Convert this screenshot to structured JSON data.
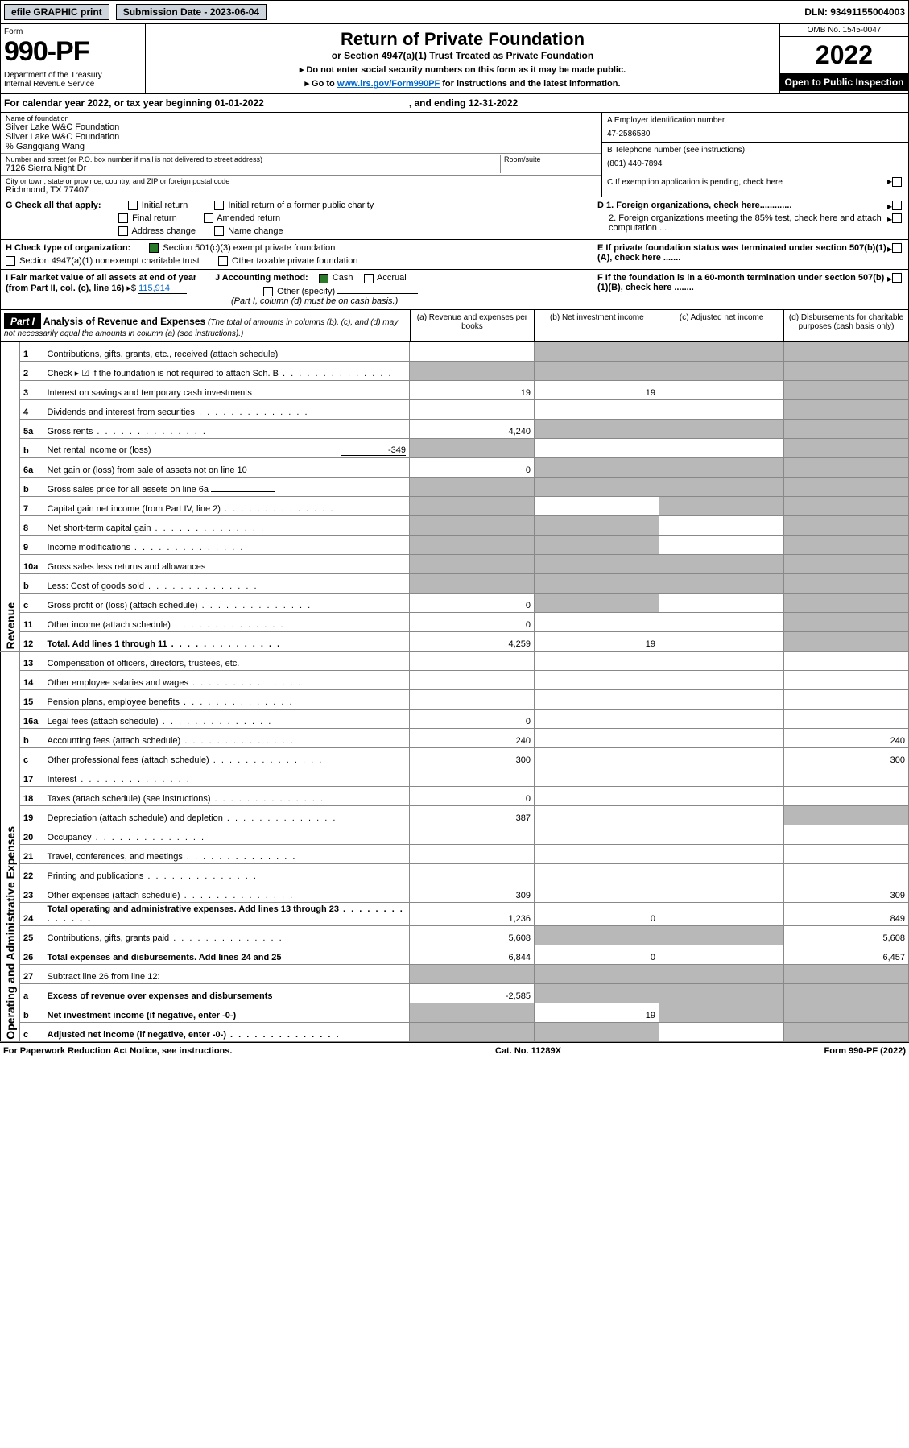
{
  "top": {
    "efile": "efile GRAPHIC print",
    "submission_label": "Submission Date - 2023-06-04",
    "dln": "DLN: 93491155004003"
  },
  "header": {
    "form_label": "Form",
    "form_num": "990-PF",
    "dept": "Department of the Treasury\nInternal Revenue Service",
    "title": "Return of Private Foundation",
    "subtitle": "or Section 4947(a)(1) Trust Treated as Private Foundation",
    "instr1": "▸ Do not enter social security numbers on this form as it may be made public.",
    "instr2_pre": "▸ Go to ",
    "instr2_link": "www.irs.gov/Form990PF",
    "instr2_post": " for instructions and the latest information.",
    "omb": "OMB No. 1545-0047",
    "year": "2022",
    "open_pub": "Open to Public Inspection"
  },
  "period": {
    "text": "For calendar year 2022, or tax year beginning 01-01-2022",
    "ending": ", and ending 12-31-2022"
  },
  "entity": {
    "name_label": "Name of foundation",
    "name1": "Silver Lake W&C Foundation",
    "name2": "Silver Lake W&C Foundation",
    "care_of": "% Gangqiang Wang",
    "addr_label": "Number and street (or P.O. box number if mail is not delivered to street address)",
    "addr": "7126 Sierra Night Dr",
    "room_label": "Room/suite",
    "city_label": "City or town, state or province, country, and ZIP or foreign postal code",
    "city": "Richmond, TX  77407",
    "a_label": "A Employer identification number",
    "a_val": "47-2586580",
    "b_label": "B Telephone number (see instructions)",
    "b_val": "(801) 440-7894",
    "c_label": "C If exemption application is pending, check here",
    "d1_label": "D 1. Foreign organizations, check here.............",
    "d2_label": "2. Foreign organizations meeting the 85% test, check here and attach computation ...",
    "e_label": "E If private foundation status was terminated under section 507(b)(1)(A), check here .......",
    "f_label": "F If the foundation is in a 60-month termination under section 507(b)(1)(B), check here ........"
  },
  "g": {
    "label": "G Check all that apply:",
    "initial": "Initial return",
    "initial_former": "Initial return of a former public charity",
    "final": "Final return",
    "amended": "Amended return",
    "addr_change": "Address change",
    "name_change": "Name change"
  },
  "h": {
    "label": "H Check type of organization:",
    "opt1": "Section 501(c)(3) exempt private foundation",
    "opt2": "Section 4947(a)(1) nonexempt charitable trust",
    "opt3": "Other taxable private foundation"
  },
  "i": {
    "label": "I Fair market value of all assets at end of year (from Part II, col. (c), line 16)",
    "arrow": "▸$",
    "val": "115,914"
  },
  "j": {
    "label": "J Accounting method:",
    "cash": "Cash",
    "accrual": "Accrual",
    "other": "Other (specify)",
    "note": "(Part I, column (d) must be on cash basis.)"
  },
  "part1": {
    "header": "Part I",
    "title": "Analysis of Revenue and Expenses",
    "title_note": "(The total of amounts in columns (b), (c), and (d) may not necessarily equal the amounts in column (a) (see instructions).)",
    "col_a": "(a) Revenue and expenses per books",
    "col_b": "(b) Net investment income",
    "col_c": "(c) Adjusted net income",
    "col_d": "(d) Disbursements for charitable purposes (cash basis only)"
  },
  "side_labels": {
    "revenue": "Revenue",
    "expenses": "Operating and Administrative Expenses"
  },
  "rows": [
    {
      "n": "1",
      "d": "Contributions, gifts, grants, etc., received (attach schedule)",
      "a": "",
      "b": "grey",
      "c": "grey",
      "dd": "grey"
    },
    {
      "n": "2",
      "d": "Check ▸ ☑ if the foundation is not required to attach Sch. B",
      "a": "grey",
      "b": "grey",
      "c": "grey",
      "dd": "grey",
      "dots": true
    },
    {
      "n": "3",
      "d": "Interest on savings and temporary cash investments",
      "a": "19",
      "b": "19",
      "c": "",
      "dd": "grey"
    },
    {
      "n": "4",
      "d": "Dividends and interest from securities",
      "a": "",
      "b": "",
      "c": "",
      "dd": "grey",
      "dots": true
    },
    {
      "n": "5a",
      "d": "Gross rents",
      "a": "4,240",
      "b": "grey",
      "c": "grey",
      "dd": "grey",
      "dots": true
    },
    {
      "n": "b",
      "d": "Net rental income or (loss)",
      "extra": "-349",
      "a": "grey",
      "b": "",
      "c": "",
      "dd": "grey"
    },
    {
      "n": "6a",
      "d": "Net gain or (loss) from sale of assets not on line 10",
      "a": "0",
      "b": "grey",
      "c": "grey",
      "dd": "grey"
    },
    {
      "n": "b",
      "d": "Gross sales price for all assets on line 6a",
      "a": "grey",
      "b": "grey",
      "c": "grey",
      "dd": "grey",
      "under": true
    },
    {
      "n": "7",
      "d": "Capital gain net income (from Part IV, line 2)",
      "a": "grey",
      "b": "",
      "c": "grey",
      "dd": "grey",
      "dots": true
    },
    {
      "n": "8",
      "d": "Net short-term capital gain",
      "a": "grey",
      "b": "grey",
      "c": "",
      "dd": "grey",
      "dots": true
    },
    {
      "n": "9",
      "d": "Income modifications",
      "a": "grey",
      "b": "grey",
      "c": "",
      "dd": "grey",
      "dots": true
    },
    {
      "n": "10a",
      "d": "Gross sales less returns and allowances",
      "a": "grey",
      "b": "grey",
      "c": "grey",
      "dd": "grey",
      "box": true
    },
    {
      "n": "b",
      "d": "Less: Cost of goods sold",
      "a": "grey",
      "b": "grey",
      "c": "grey",
      "dd": "grey",
      "box": true,
      "dots": true
    },
    {
      "n": "c",
      "d": "Gross profit or (loss) (attach schedule)",
      "a": "0",
      "b": "grey",
      "c": "",
      "dd": "grey",
      "dots": true
    },
    {
      "n": "11",
      "d": "Other income (attach schedule)",
      "a": "0",
      "b": "",
      "c": "",
      "dd": "grey",
      "dots": true
    },
    {
      "n": "12",
      "d": "Total. Add lines 1 through 11",
      "a": "4,259",
      "b": "19",
      "c": "",
      "dd": "grey",
      "bold": true,
      "dots": true
    },
    {
      "n": "13",
      "d": "Compensation of officers, directors, trustees, etc.",
      "a": "",
      "b": "",
      "c": "",
      "dd": ""
    },
    {
      "n": "14",
      "d": "Other employee salaries and wages",
      "a": "",
      "b": "",
      "c": "",
      "dd": "",
      "dots": true
    },
    {
      "n": "15",
      "d": "Pension plans, employee benefits",
      "a": "",
      "b": "",
      "c": "",
      "dd": "",
      "dots": true
    },
    {
      "n": "16a",
      "d": "Legal fees (attach schedule)",
      "a": "0",
      "b": "",
      "c": "",
      "dd": "",
      "dots": true
    },
    {
      "n": "b",
      "d": "Accounting fees (attach schedule)",
      "a": "240",
      "b": "",
      "c": "",
      "dd": "240",
      "dots": true
    },
    {
      "n": "c",
      "d": "Other professional fees (attach schedule)",
      "a": "300",
      "b": "",
      "c": "",
      "dd": "300",
      "dots": true
    },
    {
      "n": "17",
      "d": "Interest",
      "a": "",
      "b": "",
      "c": "",
      "dd": "",
      "dots": true
    },
    {
      "n": "18",
      "d": "Taxes (attach schedule) (see instructions)",
      "a": "0",
      "b": "",
      "c": "",
      "dd": "",
      "dots": true
    },
    {
      "n": "19",
      "d": "Depreciation (attach schedule) and depletion",
      "a": "387",
      "b": "",
      "c": "",
      "dd": "grey",
      "dots": true
    },
    {
      "n": "20",
      "d": "Occupancy",
      "a": "",
      "b": "",
      "c": "",
      "dd": "",
      "dots": true
    },
    {
      "n": "21",
      "d": "Travel, conferences, and meetings",
      "a": "",
      "b": "",
      "c": "",
      "dd": "",
      "dots": true
    },
    {
      "n": "22",
      "d": "Printing and publications",
      "a": "",
      "b": "",
      "c": "",
      "dd": "",
      "dots": true
    },
    {
      "n": "23",
      "d": "Other expenses (attach schedule)",
      "a": "309",
      "b": "",
      "c": "",
      "dd": "309",
      "dots": true
    },
    {
      "n": "24",
      "d": "Total operating and administrative expenses. Add lines 13 through 23",
      "a": "1,236",
      "b": "0",
      "c": "",
      "dd": "849",
      "bold": true,
      "dots": true
    },
    {
      "n": "25",
      "d": "Contributions, gifts, grants paid",
      "a": "5,608",
      "b": "grey",
      "c": "grey",
      "dd": "5,608",
      "dots": true
    },
    {
      "n": "26",
      "d": "Total expenses and disbursements. Add lines 24 and 25",
      "a": "6,844",
      "b": "0",
      "c": "",
      "dd": "6,457",
      "bold": true
    },
    {
      "n": "27",
      "d": "Subtract line 26 from line 12:",
      "a": "grey",
      "b": "grey",
      "c": "grey",
      "dd": "grey"
    },
    {
      "n": "a",
      "d": "Excess of revenue over expenses and disbursements",
      "a": "-2,585",
      "b": "grey",
      "c": "grey",
      "dd": "grey",
      "bold": true
    },
    {
      "n": "b",
      "d": "Net investment income (if negative, enter -0-)",
      "a": "grey",
      "b": "19",
      "c": "grey",
      "dd": "grey",
      "bold": true
    },
    {
      "n": "c",
      "d": "Adjusted net income (if negative, enter -0-)",
      "a": "grey",
      "b": "grey",
      "c": "",
      "dd": "grey",
      "bold": true,
      "dots": true
    }
  ],
  "footer": {
    "left": "For Paperwork Reduction Act Notice, see instructions.",
    "center": "Cat. No. 11289X",
    "right": "Form 990-PF (2022)"
  }
}
